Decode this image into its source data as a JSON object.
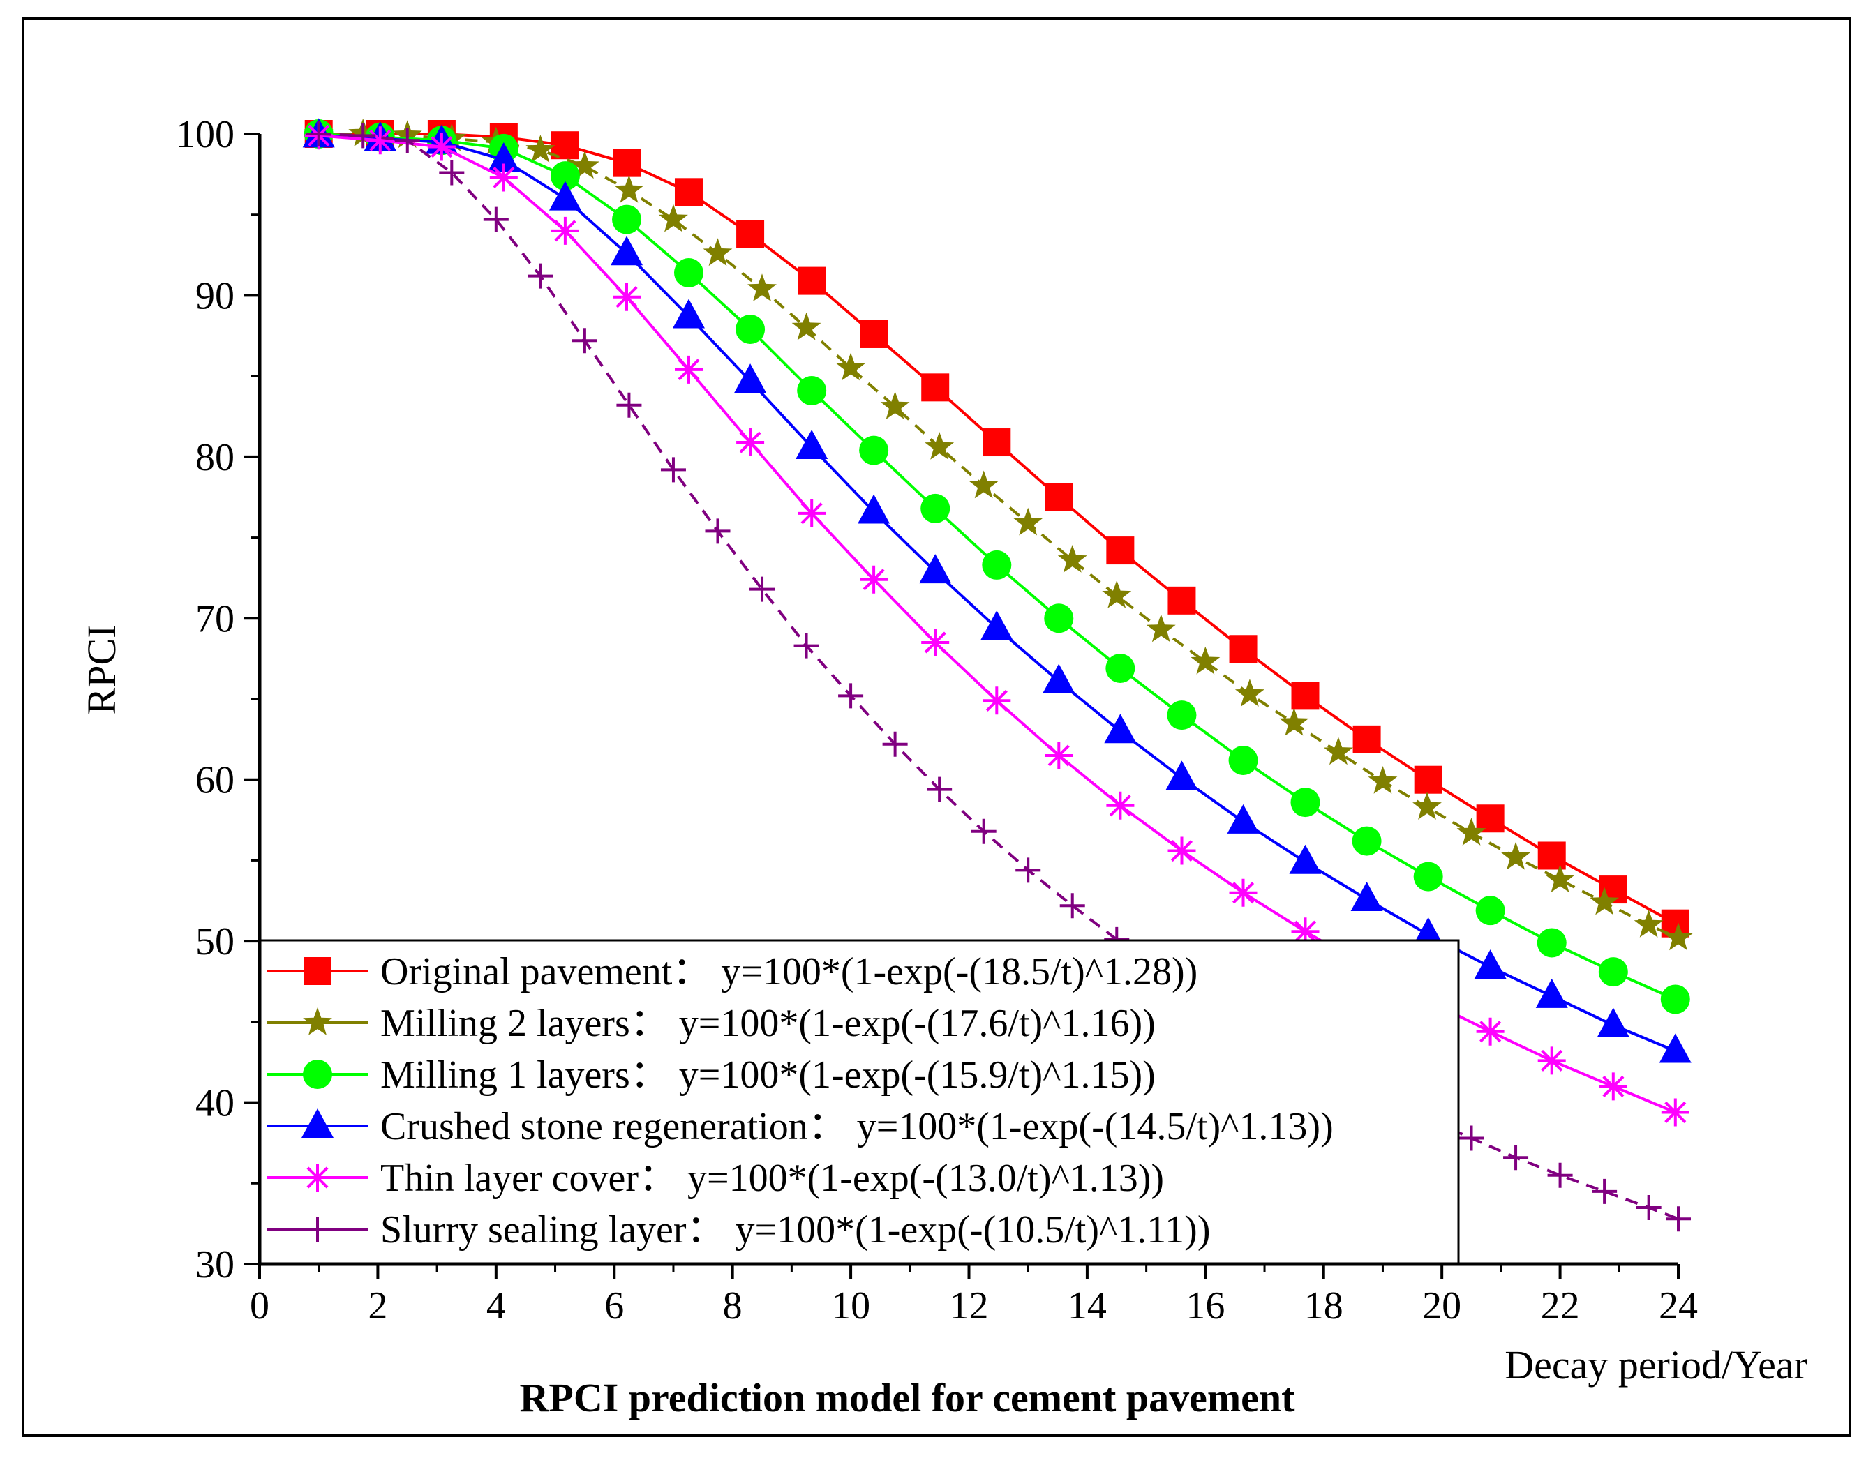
{
  "chart_data": {
    "type": "line",
    "title": "RPCI prediction model for cement pavement",
    "xlabel": "Decay period/Year",
    "ylabel": "RPCI",
    "xlim": [
      0,
      24
    ],
    "ylim": [
      30,
      100
    ],
    "xticks": [
      "0",
      "2",
      "4",
      "6",
      "8",
      "10",
      "12",
      "14",
      "16",
      "18",
      "20",
      "22",
      "24"
    ],
    "yticks": [
      "30",
      "40",
      "50",
      "60",
      "70",
      "80",
      "90",
      "100"
    ],
    "grid": false,
    "legend_position": "bottom-left",
    "series": [
      {
        "name": "Original pavement",
        "equation": "y=100*(1-exp(-(18.5/t)^1.28))",
        "color": "#ff0000",
        "marker": "square",
        "x": [
          1,
          2.04,
          3.08,
          4.13,
          5.17,
          6.21,
          7.26,
          8.3,
          9.34,
          10.39,
          11.43,
          12.47,
          13.52,
          14.56,
          15.6,
          16.64,
          17.69,
          18.73,
          19.77,
          20.82,
          21.86,
          22.9,
          23.95
        ],
        "values": [
          100,
          100,
          100,
          99.8,
          99.3,
          98.2,
          96.4,
          93.8,
          90.9,
          87.6,
          84.3,
          80.9,
          77.5,
          74.2,
          71.1,
          68.1,
          65.2,
          62.5,
          60.0,
          57.6,
          55.3,
          53.2,
          51.1
        ]
      },
      {
        "name": "Milling 2 layers",
        "equation": "y=100*(1-exp(-(17.6/t)^1.16))",
        "color": "#808000",
        "marker": "star",
        "x": [
          1,
          1.75,
          2.5,
          3.25,
          4,
          4.75,
          5.5,
          6.25,
          7,
          7.75,
          8.5,
          9.25,
          10,
          10.75,
          11.5,
          12.25,
          13,
          13.75,
          14.5,
          15.25,
          16,
          16.75,
          17.5,
          18.25,
          19,
          19.75,
          20.5,
          21.25,
          22,
          22.75,
          23.5,
          24
        ],
        "values": [
          100,
          100,
          99.9,
          99.7,
          99.5,
          99.0,
          98.0,
          96.5,
          94.7,
          92.6,
          90.4,
          88.0,
          85.5,
          83.1,
          80.6,
          78.2,
          75.9,
          73.6,
          71.4,
          69.3,
          67.3,
          65.3,
          63.5,
          61.7,
          59.9,
          58.3,
          56.7,
          55.2,
          53.8,
          52.4,
          51.0,
          50.2
        ]
      },
      {
        "name": "Milling 1 layers",
        "equation": "y=100*(1-exp(-(15.9/t)^1.15))",
        "color": "#00ff00",
        "marker": "circle",
        "x": [
          1,
          2.04,
          3.08,
          4.13,
          5.17,
          6.21,
          7.26,
          8.3,
          9.34,
          10.39,
          11.43,
          12.47,
          13.52,
          14.56,
          15.6,
          16.64,
          17.69,
          18.73,
          19.77,
          20.82,
          21.86,
          22.9,
          23.95
        ],
        "values": [
          100,
          99.8,
          99.6,
          99.1,
          97.4,
          94.7,
          91.4,
          87.9,
          84.1,
          80.4,
          76.8,
          73.3,
          70.0,
          66.9,
          64.0,
          61.2,
          58.6,
          56.2,
          54.0,
          51.9,
          49.9,
          48.1,
          46.4
        ]
      },
      {
        "name": "Crushed stone regeneration",
        "equation": "y=100*(1-exp(-(14.5/t)^1.13))",
        "color": "#0000ff",
        "marker": "triangle",
        "x": [
          1,
          2.04,
          3.08,
          4.13,
          5.17,
          6.21,
          7.26,
          8.3,
          9.34,
          10.39,
          11.43,
          12.47,
          13.52,
          14.56,
          15.6,
          16.64,
          17.69,
          18.73,
          19.77,
          20.82,
          21.86,
          22.9,
          23.95
        ],
        "values": [
          99.9,
          99.7,
          99.5,
          98.4,
          96.0,
          92.6,
          88.7,
          84.7,
          80.6,
          76.6,
          72.9,
          69.4,
          66.1,
          63.0,
          60.1,
          57.4,
          54.9,
          52.6,
          50.4,
          48.4,
          46.6,
          44.8,
          43.2
        ]
      },
      {
        "name": "Thin layer cover",
        "equation": "y=100*(1-exp(-(13.0/t)^1.13))",
        "color": "#ff00ff",
        "marker": "asterisk",
        "x": [
          1,
          2.04,
          3.08,
          4.13,
          5.17,
          6.21,
          7.26,
          8.3,
          9.34,
          10.39,
          11.43,
          12.47,
          13.52,
          14.56,
          15.6,
          16.64,
          17.69,
          18.73,
          19.77,
          20.82,
          21.86,
          22.9,
          23.95
        ],
        "values": [
          99.9,
          99.6,
          99.2,
          97.3,
          94.0,
          89.9,
          85.4,
          80.9,
          76.5,
          72.4,
          68.5,
          64.9,
          61.5,
          58.4,
          55.6,
          53.0,
          50.6,
          48.4,
          46.3,
          44.4,
          42.6,
          41.0,
          39.4
        ]
      },
      {
        "name": "Slurry sealing layer",
        "equation": "y=100*(1-exp(-(10.5/t)^1.11))",
        "color": "#800080",
        "marker": "plus",
        "x": [
          1,
          1.75,
          2.5,
          3.25,
          4,
          4.75,
          5.5,
          6.25,
          7,
          7.75,
          8.5,
          9.25,
          10,
          10.75,
          11.5,
          12.25,
          13,
          13.75,
          14.5,
          15.25,
          16,
          16.75,
          17.5,
          18.25,
          19,
          19.75,
          20.5,
          21.25,
          22,
          22.75,
          23.5,
          24
        ],
        "values": [
          100,
          99.9,
          99.6,
          97.6,
          94.7,
          91.2,
          87.2,
          83.2,
          79.2,
          75.4,
          71.8,
          68.3,
          65.2,
          62.2,
          59.4,
          56.8,
          54.4,
          52.2,
          50.1,
          48.2,
          46.4,
          44.7,
          43.2,
          41.7,
          40.3,
          39.0,
          37.8,
          36.6,
          35.5,
          34.5,
          33.5,
          32.8
        ]
      }
    ]
  }
}
